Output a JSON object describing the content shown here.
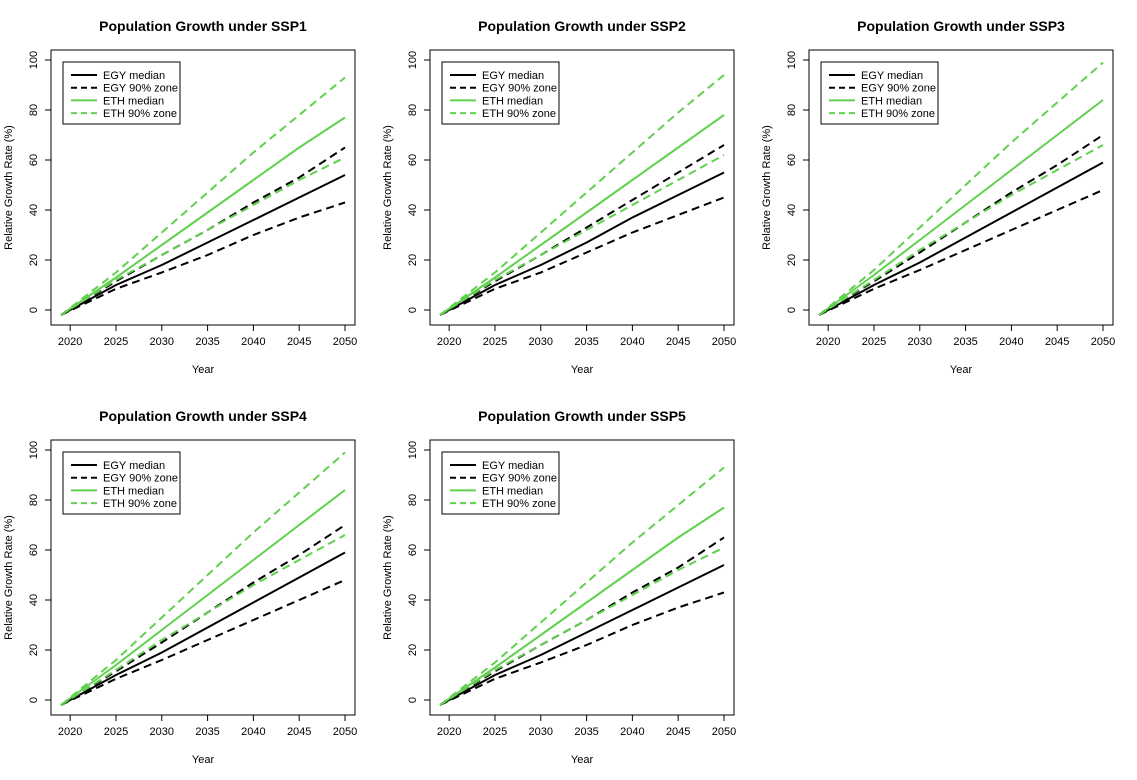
{
  "colors": {
    "egy": "#000000",
    "eth": "#61d04f",
    "axis": "#000000",
    "background": "#ffffff"
  },
  "legend_entries": [
    {
      "label": "EGY median",
      "country": "egy",
      "kind": "median"
    },
    {
      "label": "EGY 90% zone",
      "country": "egy",
      "kind": "zone"
    },
    {
      "label": "ETH median",
      "country": "eth",
      "kind": "median"
    },
    {
      "label": "ETH 90% zone",
      "country": "eth",
      "kind": "zone"
    }
  ],
  "chart_data": [
    {
      "type": "line",
      "title": "Population Growth under SSP1",
      "xlabel": "Year",
      "ylabel": "Relative Growth Rate (%)",
      "xlim": [
        2019,
        2050
      ],
      "ylim": [
        -2,
        100
      ],
      "xticks": [
        2020,
        2025,
        2030,
        2035,
        2040,
        2045,
        2050
      ],
      "yticks": [
        0,
        20,
        40,
        60,
        80,
        100
      ],
      "legend_position": "top-left",
      "series": [
        {
          "name": "EGY median",
          "color": "black",
          "style": "solid",
          "x": [
            2019,
            2025,
            2030,
            2035,
            2040,
            2045,
            2050
          ],
          "values": [
            -2,
            10,
            18,
            27,
            36,
            45,
            54
          ]
        },
        {
          "name": "EGY 90% zone upper",
          "color": "black",
          "style": "dashed",
          "x": [
            2019,
            2025,
            2030,
            2035,
            2040,
            2045,
            2050
          ],
          "values": [
            -2,
            11.5,
            22,
            32,
            43,
            53,
            65
          ]
        },
        {
          "name": "EGY 90% zone lower",
          "color": "black",
          "style": "dashed",
          "x": [
            2019,
            2025,
            2030,
            2035,
            2040,
            2045,
            2050
          ],
          "values": [
            -2,
            8.5,
            15,
            22,
            30,
            37,
            43
          ]
        },
        {
          "name": "ETH median",
          "color": "green",
          "style": "solid",
          "x": [
            2019,
            2025,
            2030,
            2035,
            2040,
            2045,
            2050
          ],
          "values": [
            -2,
            13,
            26,
            39,
            52,
            65,
            77
          ]
        },
        {
          "name": "ETH 90% zone upper",
          "color": "green",
          "style": "dashed",
          "x": [
            2019,
            2025,
            2030,
            2035,
            2040,
            2045,
            2050
          ],
          "values": [
            -2,
            15,
            31,
            47,
            63,
            78,
            93
          ]
        },
        {
          "name": "ETH 90% zone lower",
          "color": "green",
          "style": "dashed",
          "x": [
            2019,
            2025,
            2030,
            2035,
            2040,
            2045,
            2050
          ],
          "values": [
            -2,
            12,
            22,
            32,
            42,
            52,
            61
          ]
        }
      ]
    },
    {
      "type": "line",
      "title": "Population Growth under SSP2",
      "xlabel": "Year",
      "ylabel": "Relative Growth Rate (%)",
      "xlim": [
        2019,
        2050
      ],
      "ylim": [
        -2,
        100
      ],
      "xticks": [
        2020,
        2025,
        2030,
        2035,
        2040,
        2045,
        2050
      ],
      "yticks": [
        0,
        20,
        40,
        60,
        80,
        100
      ],
      "legend_position": "top-left",
      "series": [
        {
          "name": "EGY median",
          "color": "black",
          "style": "solid",
          "x": [
            2019,
            2025,
            2030,
            2035,
            2040,
            2045,
            2050
          ],
          "values": [
            -2,
            10,
            18,
            27,
            37,
            46,
            55
          ]
        },
        {
          "name": "EGY 90% zone upper",
          "color": "black",
          "style": "dashed",
          "x": [
            2019,
            2025,
            2030,
            2035,
            2040,
            2045,
            2050
          ],
          "values": [
            -2,
            11.5,
            22,
            33,
            44,
            55,
            66
          ]
        },
        {
          "name": "EGY 90% zone lower",
          "color": "black",
          "style": "dashed",
          "x": [
            2019,
            2025,
            2030,
            2035,
            2040,
            2045,
            2050
          ],
          "values": [
            -2,
            8.5,
            15,
            23,
            31,
            38,
            45
          ]
        },
        {
          "name": "ETH median",
          "color": "green",
          "style": "solid",
          "x": [
            2019,
            2025,
            2030,
            2035,
            2040,
            2045,
            2050
          ],
          "values": [
            -2,
            13,
            26,
            39,
            52,
            65,
            78
          ]
        },
        {
          "name": "ETH 90% zone upper",
          "color": "green",
          "style": "dashed",
          "x": [
            2019,
            2025,
            2030,
            2035,
            2040,
            2045,
            2050
          ],
          "values": [
            -2,
            15,
            31,
            47,
            63,
            79,
            94
          ]
        },
        {
          "name": "ETH 90% zone lower",
          "color": "green",
          "style": "dashed",
          "x": [
            2019,
            2025,
            2030,
            2035,
            2040,
            2045,
            2050
          ],
          "values": [
            -2,
            12,
            22,
            32,
            42,
            52,
            62
          ]
        }
      ]
    },
    {
      "type": "line",
      "title": "Population Growth under SSP3",
      "xlabel": "Year",
      "ylabel": "Relative Growth Rate (%)",
      "xlim": [
        2019,
        2050
      ],
      "ylim": [
        -2,
        100
      ],
      "xticks": [
        2020,
        2025,
        2030,
        2035,
        2040,
        2045,
        2050
      ],
      "yticks": [
        0,
        20,
        40,
        60,
        80,
        100
      ],
      "legend_position": "top-left",
      "series": [
        {
          "name": "EGY median",
          "color": "black",
          "style": "solid",
          "x": [
            2019,
            2025,
            2030,
            2035,
            2040,
            2045,
            2050
          ],
          "values": [
            -2,
            10,
            19,
            29,
            39,
            49,
            59
          ]
        },
        {
          "name": "EGY 90% zone upper",
          "color": "black",
          "style": "dashed",
          "x": [
            2019,
            2025,
            2030,
            2035,
            2040,
            2045,
            2050
          ],
          "values": [
            -2,
            11.5,
            23,
            35,
            47,
            58,
            70
          ]
        },
        {
          "name": "EGY 90% zone lower",
          "color": "black",
          "style": "dashed",
          "x": [
            2019,
            2025,
            2030,
            2035,
            2040,
            2045,
            2050
          ],
          "values": [
            -2,
            8.5,
            16,
            24,
            32,
            40,
            48
          ]
        },
        {
          "name": "ETH median",
          "color": "green",
          "style": "solid",
          "x": [
            2019,
            2025,
            2030,
            2035,
            2040,
            2045,
            2050
          ],
          "values": [
            -2,
            14,
            28,
            42,
            56,
            70,
            84
          ]
        },
        {
          "name": "ETH 90% zone upper",
          "color": "green",
          "style": "dashed",
          "x": [
            2019,
            2025,
            2030,
            2035,
            2040,
            2045,
            2050
          ],
          "values": [
            -2,
            16,
            33,
            50,
            67,
            83,
            99
          ]
        },
        {
          "name": "ETH 90% zone lower",
          "color": "green",
          "style": "dashed",
          "x": [
            2019,
            2025,
            2030,
            2035,
            2040,
            2045,
            2050
          ],
          "values": [
            -2,
            12,
            24,
            35,
            46,
            56,
            66
          ]
        }
      ]
    },
    {
      "type": "line",
      "title": "Population Growth under SSP4",
      "xlabel": "Year",
      "ylabel": "Relative Growth Rate (%)",
      "xlim": [
        2019,
        2050
      ],
      "ylim": [
        -2,
        100
      ],
      "xticks": [
        2020,
        2025,
        2030,
        2035,
        2040,
        2045,
        2050
      ],
      "yticks": [
        0,
        20,
        40,
        60,
        80,
        100
      ],
      "legend_position": "top-left",
      "series": [
        {
          "name": "EGY median",
          "color": "black",
          "style": "solid",
          "x": [
            2019,
            2025,
            2030,
            2035,
            2040,
            2045,
            2050
          ],
          "values": [
            -2,
            10,
            19,
            29,
            39,
            49,
            59
          ]
        },
        {
          "name": "EGY 90% zone upper",
          "color": "black",
          "style": "dashed",
          "x": [
            2019,
            2025,
            2030,
            2035,
            2040,
            2045,
            2050
          ],
          "values": [
            -2,
            11.5,
            23,
            35,
            47,
            58,
            70
          ]
        },
        {
          "name": "EGY 90% zone lower",
          "color": "black",
          "style": "dashed",
          "x": [
            2019,
            2025,
            2030,
            2035,
            2040,
            2045,
            2050
          ],
          "values": [
            -2,
            8.5,
            16,
            24,
            32,
            40,
            48
          ]
        },
        {
          "name": "ETH median",
          "color": "green",
          "style": "solid",
          "x": [
            2019,
            2025,
            2030,
            2035,
            2040,
            2045,
            2050
          ],
          "values": [
            -2,
            14,
            28,
            42,
            56,
            70,
            84
          ]
        },
        {
          "name": "ETH 90% zone upper",
          "color": "green",
          "style": "dashed",
          "x": [
            2019,
            2025,
            2030,
            2035,
            2040,
            2045,
            2050
          ],
          "values": [
            -2,
            16,
            33,
            50,
            67,
            83,
            99
          ]
        },
        {
          "name": "ETH 90% zone lower",
          "color": "green",
          "style": "dashed",
          "x": [
            2019,
            2025,
            2030,
            2035,
            2040,
            2045,
            2050
          ],
          "values": [
            -2,
            12,
            24,
            35,
            46,
            56,
            66
          ]
        }
      ]
    },
    {
      "type": "line",
      "title": "Population Growth under SSP5",
      "xlabel": "Year",
      "ylabel": "Relative Growth Rate (%)",
      "xlim": [
        2019,
        2050
      ],
      "ylim": [
        -2,
        100
      ],
      "xticks": [
        2020,
        2025,
        2030,
        2035,
        2040,
        2045,
        2050
      ],
      "yticks": [
        0,
        20,
        40,
        60,
        80,
        100
      ],
      "legend_position": "top-left",
      "series": [
        {
          "name": "EGY median",
          "color": "black",
          "style": "solid",
          "x": [
            2019,
            2025,
            2030,
            2035,
            2040,
            2045,
            2050
          ],
          "values": [
            -2,
            10,
            18,
            27,
            36,
            45,
            54
          ]
        },
        {
          "name": "EGY 90% zone upper",
          "color": "black",
          "style": "dashed",
          "x": [
            2019,
            2025,
            2030,
            2035,
            2040,
            2045,
            2050
          ],
          "values": [
            -2,
            11.5,
            22,
            32,
            43,
            53,
            65
          ]
        },
        {
          "name": "EGY 90% zone lower",
          "color": "black",
          "style": "dashed",
          "x": [
            2019,
            2025,
            2030,
            2035,
            2040,
            2045,
            2050
          ],
          "values": [
            -2,
            8.5,
            15,
            22,
            30,
            37,
            43
          ]
        },
        {
          "name": "ETH median",
          "color": "green",
          "style": "solid",
          "x": [
            2019,
            2025,
            2030,
            2035,
            2040,
            2045,
            2050
          ],
          "values": [
            -2,
            13,
            26,
            39,
            52,
            65,
            77
          ]
        },
        {
          "name": "ETH 90% zone upper",
          "color": "green",
          "style": "dashed",
          "x": [
            2019,
            2025,
            2030,
            2035,
            2040,
            2045,
            2050
          ],
          "values": [
            -2,
            15,
            31,
            47,
            63,
            78,
            93
          ]
        },
        {
          "name": "ETH 90% zone lower",
          "color": "green",
          "style": "dashed",
          "x": [
            2019,
            2025,
            2030,
            2035,
            2040,
            2045,
            2050
          ],
          "values": [
            -2,
            12,
            22,
            32,
            42,
            52,
            61
          ]
        }
      ]
    }
  ]
}
